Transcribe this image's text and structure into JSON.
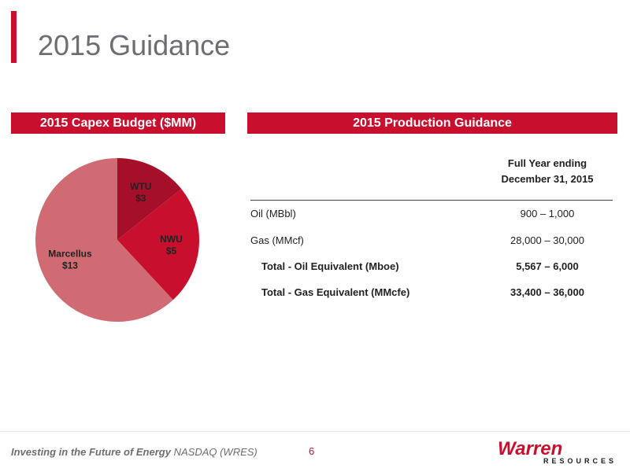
{
  "slide": {
    "title": "2015 Guidance",
    "page_number": "6"
  },
  "capex_header": "2015 Capex Budget ($MM)",
  "production_header": "2015 Production Guidance",
  "chart_data": {
    "type": "pie",
    "title": "2015 Capex Budget ($MM)",
    "slices": [
      {
        "name": "WTU",
        "value": 3,
        "label": "WTU",
        "value_label": "$3",
        "color": "#a50f2a"
      },
      {
        "name": "NWU",
        "value": 5,
        "label": "NWU",
        "value_label": "$5",
        "color": "#c8102e"
      },
      {
        "name": "Marcellus",
        "value": 13,
        "label": "Marcellus",
        "value_label": "$13",
        "color": "#d06b73"
      }
    ]
  },
  "table": {
    "column_header_line1": "Full Year ending",
    "column_header_line2": "December 31, 2015",
    "rows": [
      {
        "label": "Oil (MBbl)",
        "value": "900 – 1,000"
      },
      {
        "label": "Gas (MMcf)",
        "value": "28,000 – 30,000"
      },
      {
        "label": "Total - Oil Equivalent (Mboe)",
        "value": "5,567 – 6,000"
      },
      {
        "label": "Total - Gas Equivalent (MMcfe)",
        "value": "33,400 – 36,000"
      }
    ]
  },
  "footer": {
    "tagline": "Investing in the Future of Energy",
    "ticker": "NASDAQ (WRES)"
  },
  "logo": {
    "name": "Warren",
    "subtitle": "RESOURCES"
  }
}
